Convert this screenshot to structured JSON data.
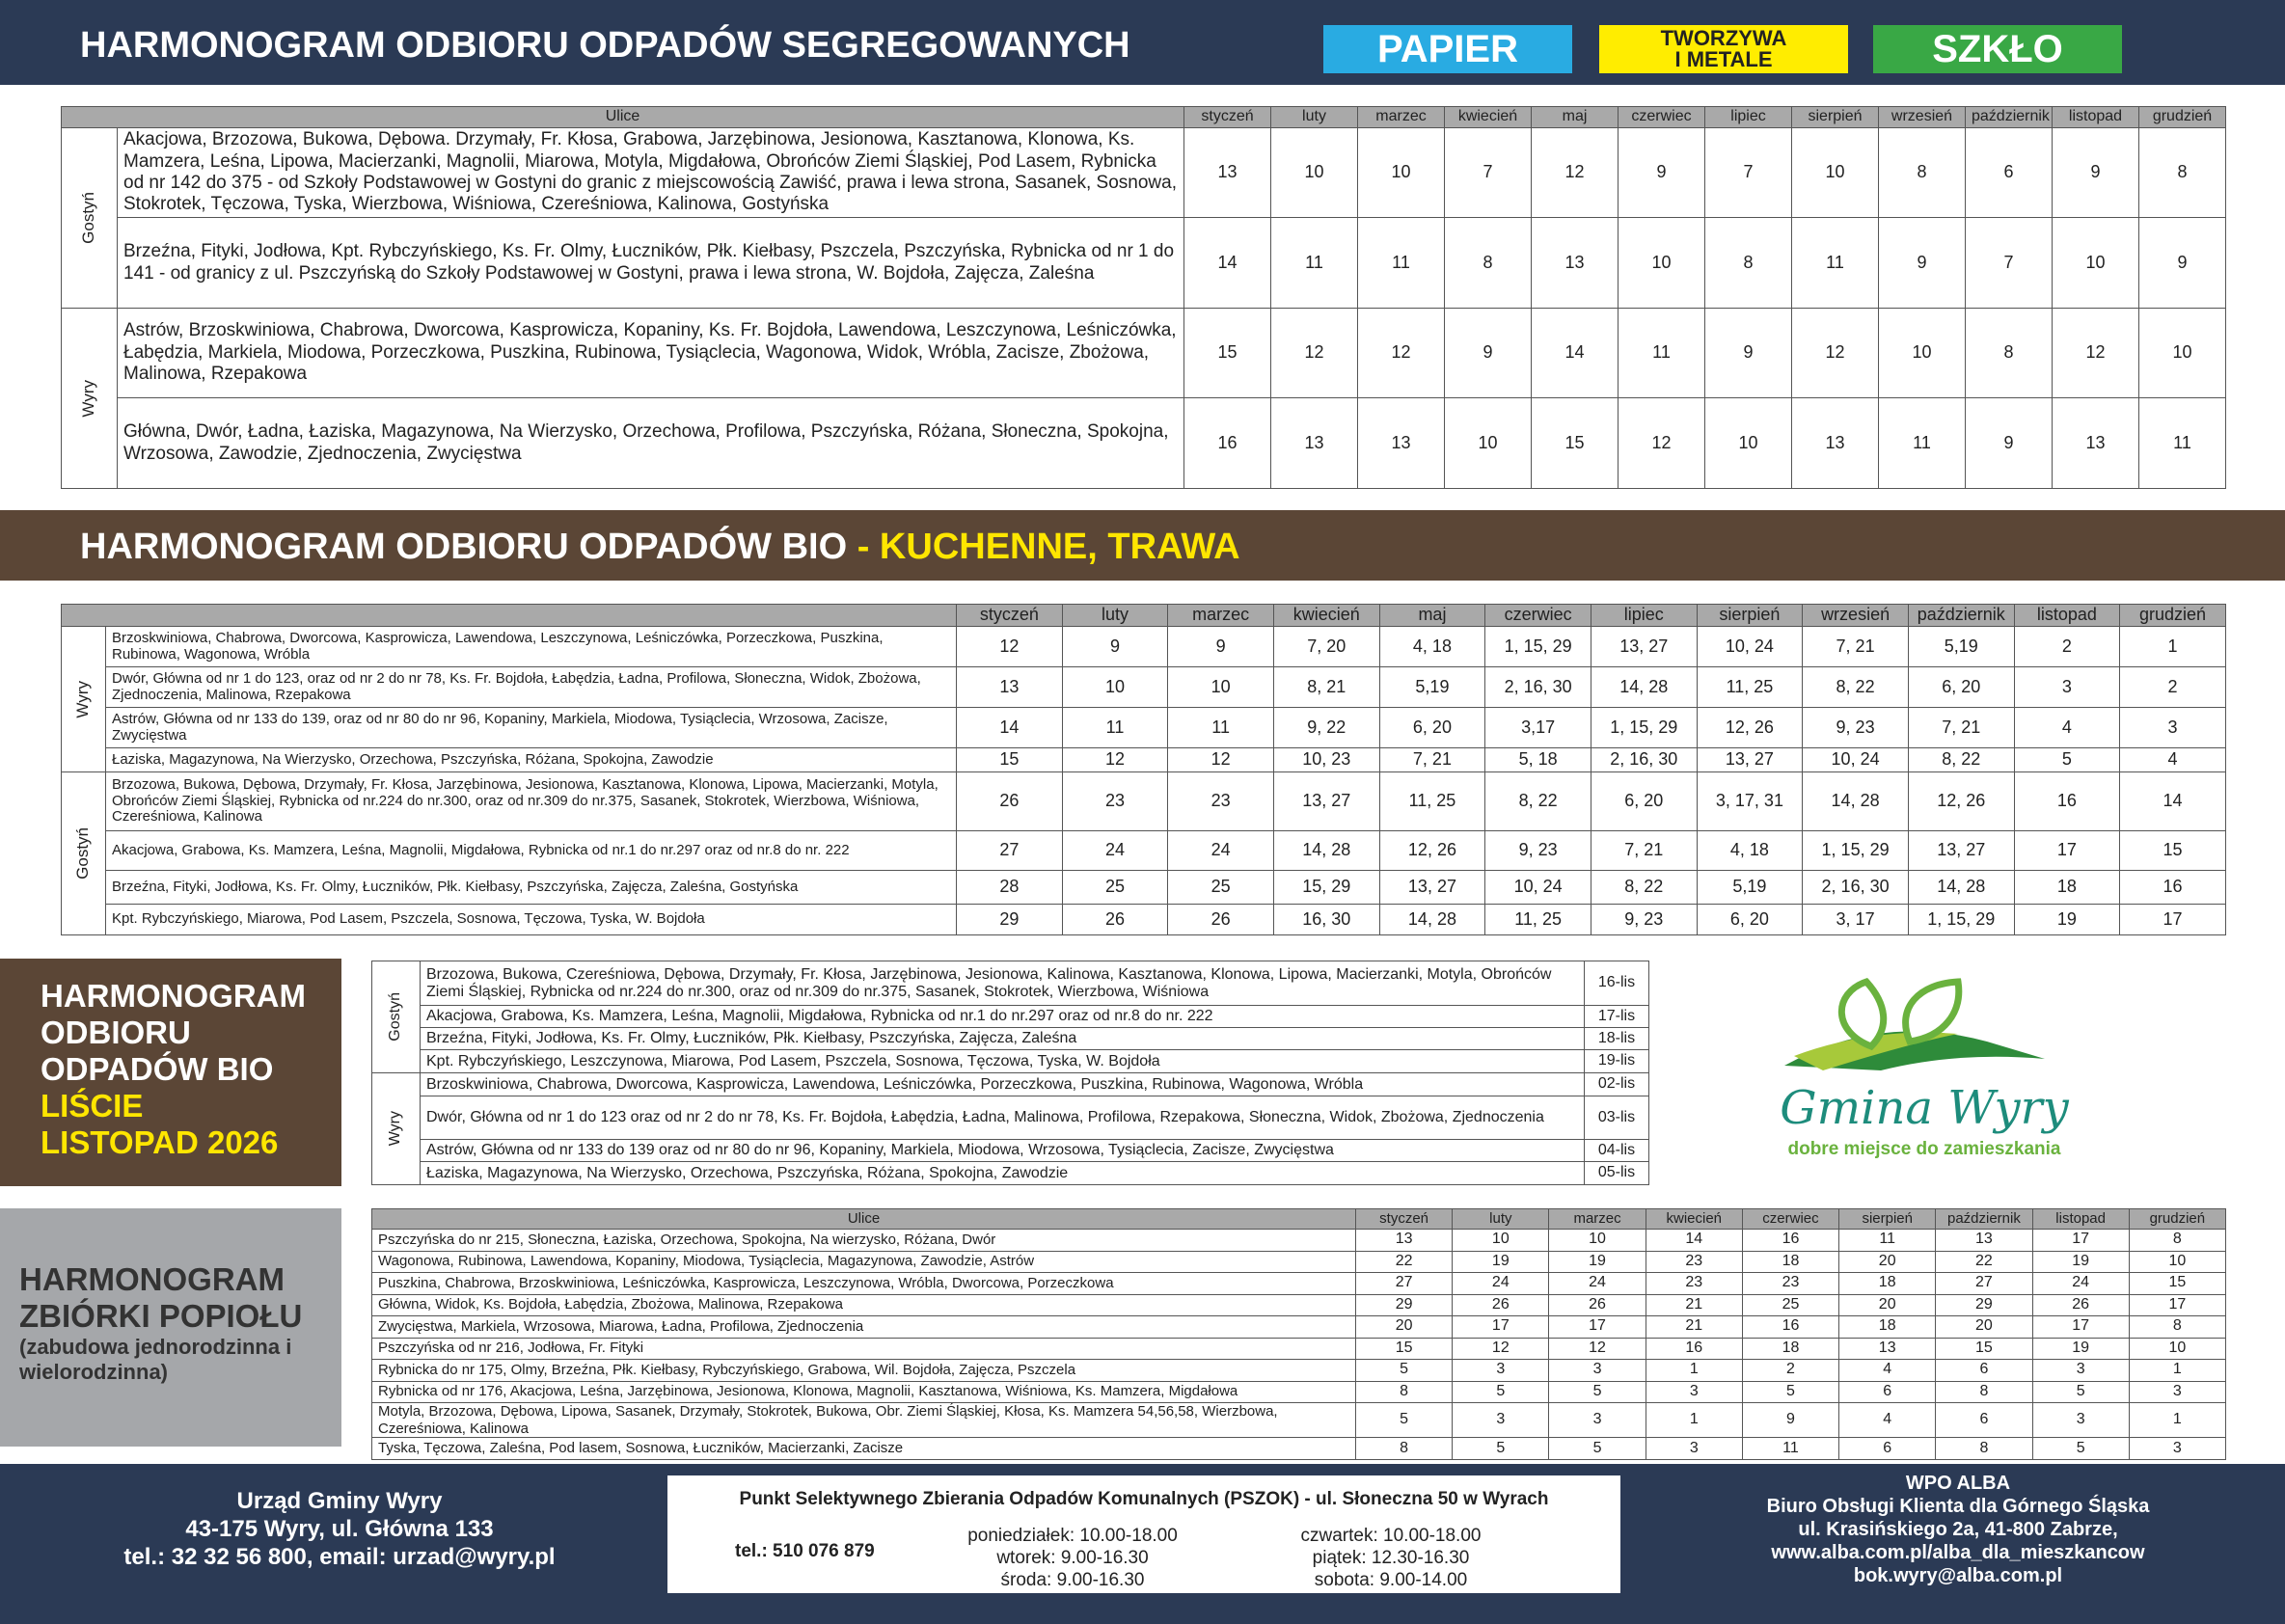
{
  "header": {
    "title": "HARMONOGRAM ODBIORU ODPADÓW SEGREGOWANYCH",
    "badges": [
      [
        "PAPIER"
      ],
      [
        "TWORZYWA",
        "I METALE"
      ],
      [
        "SZKŁO"
      ]
    ]
  },
  "segregated": {
    "street_header": "Ulice",
    "months": [
      "styczeń",
      "luty",
      "marzec",
      "kwiecień",
      "maj",
      "czerwiec",
      "lipiec",
      "sierpień",
      "wrzesień",
      "październik",
      "listopad",
      "grudzień"
    ],
    "groups": [
      {
        "name": "Gostyń",
        "rows": [
          {
            "streets": "Akacjowa, Brzozowa, Bukowa, Dębowa. Drzymały, Fr. Kłosa, Grabowa, Jarzębinowa, Jesionowa, Kasztanowa, Klonowa, Ks. Mamzera, Leśna, Lipowa, Macierzanki, Magnolii, Miarowa, Motyla, Migdałowa, Obrońców Ziemi Śląskiej, Pod Lasem, Rybnicka od nr 142 do 375 - od Szkoły Podstawowej w Gostyni do granic z miejscowością Zawiść, prawa i lewa strona, Sasanek, Sosnowa, Stokrotek, Tęczowa, Tyska, Wierzbowa, Wiśniowa, Czereśniowa, Kalinowa, Gostyńska",
            "dates": [
              13,
              10,
              10,
              7,
              12,
              9,
              7,
              10,
              8,
              6,
              9,
              8
            ]
          },
          {
            "streets": "Brzeźna, Fityki, Jodłowa, Kpt. Rybczyńskiego, Ks. Fr. Olmy, Łuczników, Płk. Kiełbasy, Pszczela, Pszczyńska, Rybnicka od nr 1 do 141 - od granicy z ul. Pszczyńską do Szkoły Podstawowej w Gostyni, prawa i lewa strona, W. Bojdoła, Zajęcza, Zaleśna",
            "dates": [
              14,
              11,
              11,
              8,
              13,
              10,
              8,
              11,
              9,
              7,
              10,
              9
            ]
          }
        ]
      },
      {
        "name": "Wyry",
        "rows": [
          {
            "streets": "Astrów, Brzoskwiniowa, Chabrowa, Dworcowa, Kasprowicza, Kopaniny, Ks. Fr. Bojdoła, Lawendowa, Leszczynowa, Leśniczówka, Łabędzia, Markiela, Miodowa, Porzeczkowa, Puszkina, Rubinowa, Tysiąclecia, Wagonowa, Widok, Wróbla, Zacisze, Zbożowa, Malinowa, Rzepakowa",
            "dates": [
              15,
              12,
              12,
              9,
              14,
              11,
              9,
              12,
              10,
              8,
              12,
              10
            ]
          },
          {
            "streets": "Główna, Dwór, Ładna, Łaziska, Magazynowa, Na Wierzysko, Orzechowa, Profilowa, Pszczyńska, Różana, Słoneczna, Spokojna, Wrzosowa, Zawodzie, Zjednoczenia, Zwycięstwa",
            "dates": [
              16,
              13,
              13,
              10,
              15,
              12,
              10,
              13,
              11,
              9,
              13,
              11
            ]
          }
        ]
      }
    ]
  },
  "bio": {
    "title": "HARMONOGRAM ODBIORU ODPADÓW BIO",
    "title_highlight": "- KUCHENNE, TRAWA",
    "months": [
      "styczeń",
      "luty",
      "marzec",
      "kwiecień",
      "maj",
      "czerwiec",
      "lipiec",
      "sierpień",
      "wrzesień",
      "październik",
      "listopad",
      "grudzień"
    ],
    "groups": [
      {
        "name": "Wyry",
        "rows": [
          {
            "streets": "Brzoskwiniowa, Chabrowa, Dworcowa, Kasprowicza, Lawendowa, Leszczynowa, Leśniczówka, Porzeczkowa, Puszkina, Rubinowa, Wagonowa, Wróbla",
            "dates": [
              12,
              9,
              9,
              "7, 20",
              "4, 18",
              "1, 15, 29",
              "13, 27",
              "10, 24",
              "7, 21",
              "5,19",
              2,
              1
            ]
          },
          {
            "streets": "Dwór, Główna od nr 1 do 123, oraz od nr 2 do nr 78, Ks. Fr. Bojdoła, Łabędzia, Ładna, Profilowa, Słoneczna, Widok, Zbożowa, Zjednoczenia, Malinowa, Rzepakowa",
            "dates": [
              13,
              10,
              10,
              "8, 21",
              "5,19",
              "2, 16, 30",
              "14, 28",
              "11, 25",
              "8, 22",
              "6, 20",
              3,
              2
            ]
          },
          {
            "streets": "Astrów, Główna od nr 133 do 139, oraz od nr 80 do nr 96, Kopaniny, Markiela, Miodowa, Tysiąclecia, Wrzosowa, Zacisze, Zwycięstwa",
            "dates": [
              14,
              11,
              11,
              "9, 22",
              "6, 20",
              "3,17",
              "1, 15, 29",
              "12, 26",
              "9, 23",
              "7, 21",
              4,
              3
            ]
          },
          {
            "streets": "Łaziska, Magazynowa, Na Wierzysko, Orzechowa, Pszczyńska, Różana, Spokojna, Zawodzie",
            "dates": [
              15,
              12,
              12,
              "10, 23",
              "7, 21",
              "5, 18",
              "2, 16, 30",
              "13, 27",
              "10, 24",
              "8, 22",
              5,
              4
            ]
          }
        ]
      },
      {
        "name": "Gostyń",
        "rows": [
          {
            "streets": "Brzozowa, Bukowa, Dębowa, Drzymały, Fr. Kłosa, Jarzębinowa, Jesionowa, Kasztanowa, Klonowa, Lipowa, Macierzanki, Motyla, Obrońców Ziemi Śląskiej, Rybnicka od nr.224 do nr.300, oraz od nr.309 do nr.375, Sasanek, Stokrotek, Wierzbowa, Wiśniowa, Czereśniowa, Kalinowa",
            "dates": [
              26,
              23,
              23,
              "13, 27",
              "11, 25",
              "8, 22",
              "6, 20",
              "3, 17, 31",
              "14, 28",
              "12, 26",
              16,
              14
            ]
          },
          {
            "streets": "Akacjowa, Grabowa, Ks. Mamzera, Leśna, Magnolii, Migdałowa, Rybnicka od nr.1 do nr.297 oraz od nr.8 do nr. 222",
            "dates": [
              27,
              24,
              24,
              "14, 28",
              "12, 26",
              "9, 23",
              "7, 21",
              "4, 18",
              "1, 15, 29",
              "13, 27",
              17,
              15
            ]
          },
          {
            "streets": "Brzeźna, Fityki, Jodłowa, Ks. Fr. Olmy, Łuczników, Płk. Kiełbasy, Pszczyńska, Zajęcza, Zaleśna, Gostyńska",
            "dates": [
              28,
              25,
              25,
              "15, 29",
              "13, 27",
              "10, 24",
              "8, 22",
              "5,19",
              "2, 16, 30",
              "14, 28",
              18,
              16
            ]
          },
          {
            "streets": "Kpt. Rybczyńskiego, Miarowa, Pod Lasem, Pszczela, Sosnowa, Tęczowa, Tyska, W. Bojdoła",
            "dates": [
              29,
              26,
              26,
              "16, 30",
              "14, 28",
              "11, 25",
              "9, 23",
              "6, 20",
              "3, 17",
              "1, 15, 29",
              19,
              17
            ]
          }
        ]
      }
    ]
  },
  "leaves": {
    "title_lines": [
      "HARMONOGRAM",
      "ODBIORU",
      "ODPADÓW BIO"
    ],
    "highlight_lines": [
      "LIŚCIE",
      "LISTOPAD 2026"
    ],
    "groups": [
      {
        "name": "Gostyń",
        "rows": [
          {
            "streets": "Brzozowa, Bukowa, Czereśniowa, Dębowa, Drzymały, Fr. Kłosa, Jarzębinowa, Jesionowa, Kalinowa, Kasztanowa, Klonowa, Lipowa, Macierzanki, Motyla, Obrońców Ziemi Śląskiej, Rybnicka od nr.224 do nr.300, oraz od nr.309 do nr.375, Sasanek, Stokrotek, Wierzbowa, Wiśniowa",
            "date": "16-lis"
          },
          {
            "streets": "Akacjowa, Grabowa, Ks. Mamzera, Leśna, Magnolii, Migdałowa, Rybnicka od nr.1 do nr.297 oraz od nr.8 do nr. 222",
            "date": "17-lis"
          },
          {
            "streets": "Brzeźna, Fityki, Jodłowa, Ks. Fr. Olmy, Łuczników, Płk. Kiełbasy, Pszczyńska, Zajęcza, Zaleśna",
            "date": "18-lis"
          },
          {
            "streets": "Kpt. Rybczyńskiego, Leszczynowa, Miarowa, Pod Lasem, Pszczela, Sosnowa, Tęczowa, Tyska, W. Bojdoła",
            "date": "19-lis"
          }
        ]
      },
      {
        "name": "Wyry",
        "rows": [
          {
            "streets": "Brzoskwiniowa, Chabrowa, Dworcowa, Kasprowicza, Lawendowa, Leśniczówka, Porzeczkowa, Puszkina, Rubinowa, Wagonowa, Wróbla",
            "date": "02-lis"
          },
          {
            "streets": "Dwór, Główna od nr 1 do 123 oraz od nr 2 do nr 78, Ks. Fr. Bojdoła, Łabędzia, Ładna, Malinowa, Profilowa, Rzepakowa, Słoneczna, Widok, Zbożowa, Zjednoczenia",
            "date": "03-lis"
          },
          {
            "streets": "Astrów, Główna od nr 133 do 139 oraz od nr 80 do nr 96, Kopaniny, Markiela, Miodowa, Wrzosowa, Tysiąclecia, Zacisze, Zwycięstwa",
            "date": "04-lis"
          },
          {
            "streets": "Łaziska, Magazynowa, Na Wierzysko, Orzechowa, Pszczyńska, Różana, Spokojna, Zawodzie",
            "date": "05-lis"
          }
        ]
      }
    ]
  },
  "logo": {
    "name": "Gmina Wyry",
    "slogan": "dobre miejsce do zamieszkania"
  },
  "ash": {
    "title": "HARMONOGRAM ZBIÓRKI POPIOŁU",
    "subtitle": "(zabudowa jednorodzinna i wielorodzinna)",
    "street_header": "Ulice",
    "months": [
      "styczeń",
      "luty",
      "marzec",
      "kwiecień",
      "czerwiec",
      "sierpień",
      "październik",
      "listopad",
      "grudzień"
    ],
    "rows": [
      {
        "streets": "Pszczyńska do nr 215, Słoneczna, Łaziska, Orzechowa, Spokojna, Na wierzysko, Różana, Dwór",
        "dates": [
          13,
          10,
          10,
          14,
          16,
          11,
          13,
          17,
          8
        ]
      },
      {
        "streets": "Wagonowa, Rubinowa, Lawendowa, Kopaniny, Miodowa, Tysiąclecia, Magazynowa, Zawodzie, Astrów",
        "dates": [
          22,
          19,
          19,
          23,
          18,
          20,
          22,
          19,
          10
        ]
      },
      {
        "streets": "Puszkina, Chabrowa, Brzoskwiniowa, Leśniczówka, Kasprowicza, Leszczynowa, Wróbla, Dworcowa, Porzeczkowa",
        "dates": [
          27,
          24,
          24,
          23,
          23,
          18,
          27,
          24,
          15
        ]
      },
      {
        "streets": "Główna, Widok, Ks. Bojdoła, Łabędzia, Zbożowa, Malinowa, Rzepakowa",
        "dates": [
          29,
          26,
          26,
          21,
          25,
          20,
          29,
          26,
          17
        ]
      },
      {
        "streets": "Zwycięstwa, Markiela, Wrzosowa, Miarowa, Ładna, Profilowa, Zjednoczenia",
        "dates": [
          20,
          17,
          17,
          21,
          16,
          18,
          20,
          17,
          8
        ]
      },
      {
        "streets": "Pszczyńska od nr 216, Jodłowa, Fr. Fityki",
        "dates": [
          15,
          12,
          12,
          16,
          18,
          13,
          15,
          19,
          10
        ]
      },
      {
        "streets": "Rybnicka do nr 175, Olmy, Brzeźna, Płk. Kiełbasy, Rybczyńskiego, Grabowa, Wil. Bojdoła, Zajęcza, Pszczela",
        "dates": [
          5,
          3,
          3,
          1,
          2,
          4,
          6,
          3,
          1
        ]
      },
      {
        "streets": "Rybnicka od nr 176, Akacjowa, Leśna, Jarzębinowa, Jesionowa, Klonowa, Magnolii, Kasztanowa, Wiśniowa, Ks. Mamzera, Migdałowa",
        "dates": [
          8,
          5,
          5,
          3,
          5,
          6,
          8,
          5,
          3
        ]
      },
      {
        "streets": "Motyla, Brzozowa, Dębowa, Lipowa, Sasanek, Drzymały, Stokrotek, Bukowa, Obr. Ziemi Śląskiej, Kłosa, Ks. Mamzera 54,56,58, Wierzbowa, Czereśniowa, Kalinowa",
        "dates": [
          5,
          3,
          3,
          1,
          9,
          4,
          6,
          3,
          1
        ]
      },
      {
        "streets": "Tyska, Tęczowa, Zaleśna, Pod lasem, Sosnowa, Łuczników, Macierzanki, Zacisze",
        "dates": [
          8,
          5,
          5,
          3,
          11,
          6,
          8,
          5,
          3
        ]
      }
    ]
  },
  "footer": {
    "office": [
      "Urząd Gminy Wyry",
      "43-175 Wyry, ul. Główna 133",
      "tel.: 32 32 56 800, email: urzad@wyry.pl"
    ],
    "pszok": {
      "title": "Punkt Selektywnego Zbierania Odpadów Komunalnych (PSZOK) - ul. Słoneczna 50 w Wyrach",
      "phone": "tel.: 510 076 879",
      "hours": [
        "poniedziałek: 10.00-18.00",
        "wtorek: 9.00-16.30",
        "środa: 9.00-16.30",
        "czwartek: 10.00-18.00",
        "piątek: 12.30-16.30",
        "sobota: 9.00-14.00"
      ]
    },
    "alba": [
      "WPO ALBA",
      "Biuro Obsługi Klienta dla Górnego Śląska",
      "ul. Krasińskiego 2a, 41-800 Zabrze,",
      "www.alba.com.pl/alba_dla_mieszkancow",
      "bok.wyry@alba.com.pl"
    ]
  }
}
